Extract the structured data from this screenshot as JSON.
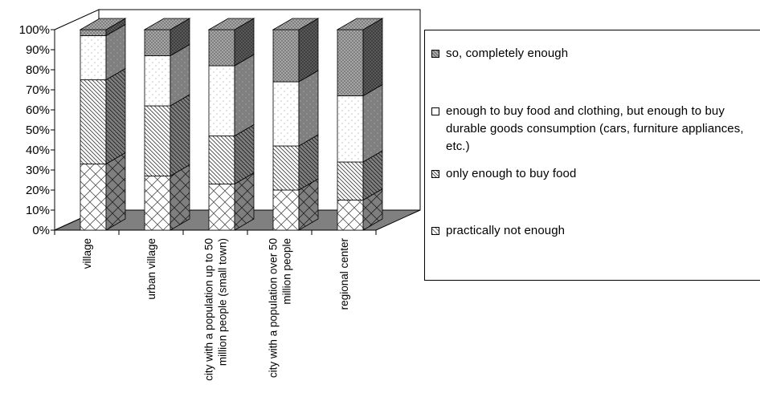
{
  "chart_data": {
    "type": "bar",
    "stacked": true,
    "three_d": true,
    "categories": [
      "village",
      "urban village",
      "city with a population up to 50 million people (small town)",
      "city with a population over 50 million people",
      "regional center"
    ],
    "category_lines": [
      [
        "village"
      ],
      [
        "urban village"
      ],
      [
        "city with a population up to 50",
        "million people (small town)"
      ],
      [
        "city with a population over 50",
        "million people"
      ],
      [
        "regional center"
      ]
    ],
    "series": [
      {
        "name": "practically not enough",
        "values": [
          33,
          27,
          23,
          20,
          15
        ]
      },
      {
        "name": "only enough to buy food",
        "values": [
          42,
          35,
          24,
          22,
          19
        ]
      },
      {
        "name": "enough to buy food and clothing, but enough to buy durable goods consumption (cars, furniture appliances, etc.)",
        "values": [
          22,
          25,
          35,
          32,
          33
        ]
      },
      {
        "name": "so, completely enough",
        "values": [
          3,
          13,
          18,
          26,
          33
        ]
      }
    ],
    "legend_order": [
      3,
      2,
      1,
      0
    ],
    "ylim": [
      0,
      100
    ],
    "yticks": [
      "0%",
      "10%",
      "20%",
      "30%",
      "40%",
      "50%",
      "60%",
      "70%",
      "80%",
      "90%",
      "100%"
    ],
    "legend_position": "right",
    "grid": false
  }
}
